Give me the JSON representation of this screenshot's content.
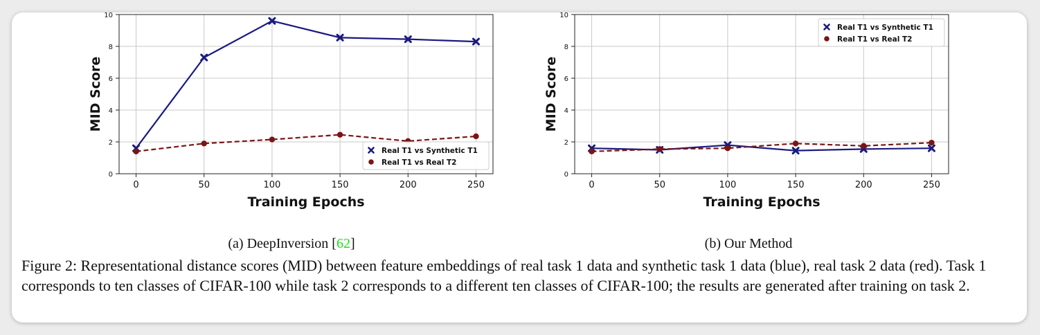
{
  "figure": {
    "caption": "Figure 2: Representational distance scores (MID) between feature embeddings of real task 1 data and synthetic task 1 data (blue), real task 2 data (red). Task 1 corresponds to ten classes of CIFAR-100 while task 2 corresponds to a different ten classes of CIFAR-100; the results are generated after training on task 2.",
    "subcaptions": [
      {
        "text": "(a) DeepInversion [",
        "ref": "62",
        "close": "]"
      },
      {
        "text": "(b) Our Method"
      }
    ]
  },
  "colors": {
    "series_1": "#1a1a7e",
    "series_2": "#7a1515",
    "reference_link": "#19e019"
  },
  "chart_data": [
    {
      "type": "line",
      "xlabel": "Training Epochs",
      "ylabel": "MID Score",
      "x": [
        0,
        50,
        100,
        150,
        200,
        250
      ],
      "xticks": [
        0,
        50,
        100,
        150,
        200,
        250
      ],
      "yticks": [
        0,
        2,
        4,
        6,
        8,
        10
      ],
      "ylim": [
        0,
        10
      ],
      "grid": true,
      "legend_position": "lower-right",
      "series": [
        {
          "name": "Real T1 vs Synthetic T1",
          "values": [
            1.6,
            7.3,
            9.6,
            8.55,
            8.45,
            8.3
          ],
          "marker": "x",
          "line": "solid"
        },
        {
          "name": "Real T1 vs Real T2",
          "values": [
            1.4,
            1.9,
            2.15,
            2.45,
            2.05,
            2.35
          ],
          "marker": "circle",
          "line": "dashed"
        }
      ]
    },
    {
      "type": "line",
      "xlabel": "Training Epochs",
      "ylabel": "MID Score",
      "x": [
        0,
        50,
        100,
        150,
        200,
        250
      ],
      "xticks": [
        0,
        50,
        100,
        150,
        200,
        250
      ],
      "yticks": [
        0,
        2,
        4,
        6,
        8,
        10
      ],
      "ylim": [
        0,
        10
      ],
      "grid": true,
      "legend_position": "upper-right",
      "series": [
        {
          "name": "Real T1 vs Synthetic T1",
          "values": [
            1.6,
            1.5,
            1.8,
            1.45,
            1.55,
            1.6
          ],
          "marker": "x",
          "line": "solid"
        },
        {
          "name": "Real T1 vs Real T2",
          "values": [
            1.4,
            1.55,
            1.6,
            1.9,
            1.75,
            1.95
          ],
          "marker": "circle",
          "line": "dashed"
        }
      ]
    }
  ]
}
